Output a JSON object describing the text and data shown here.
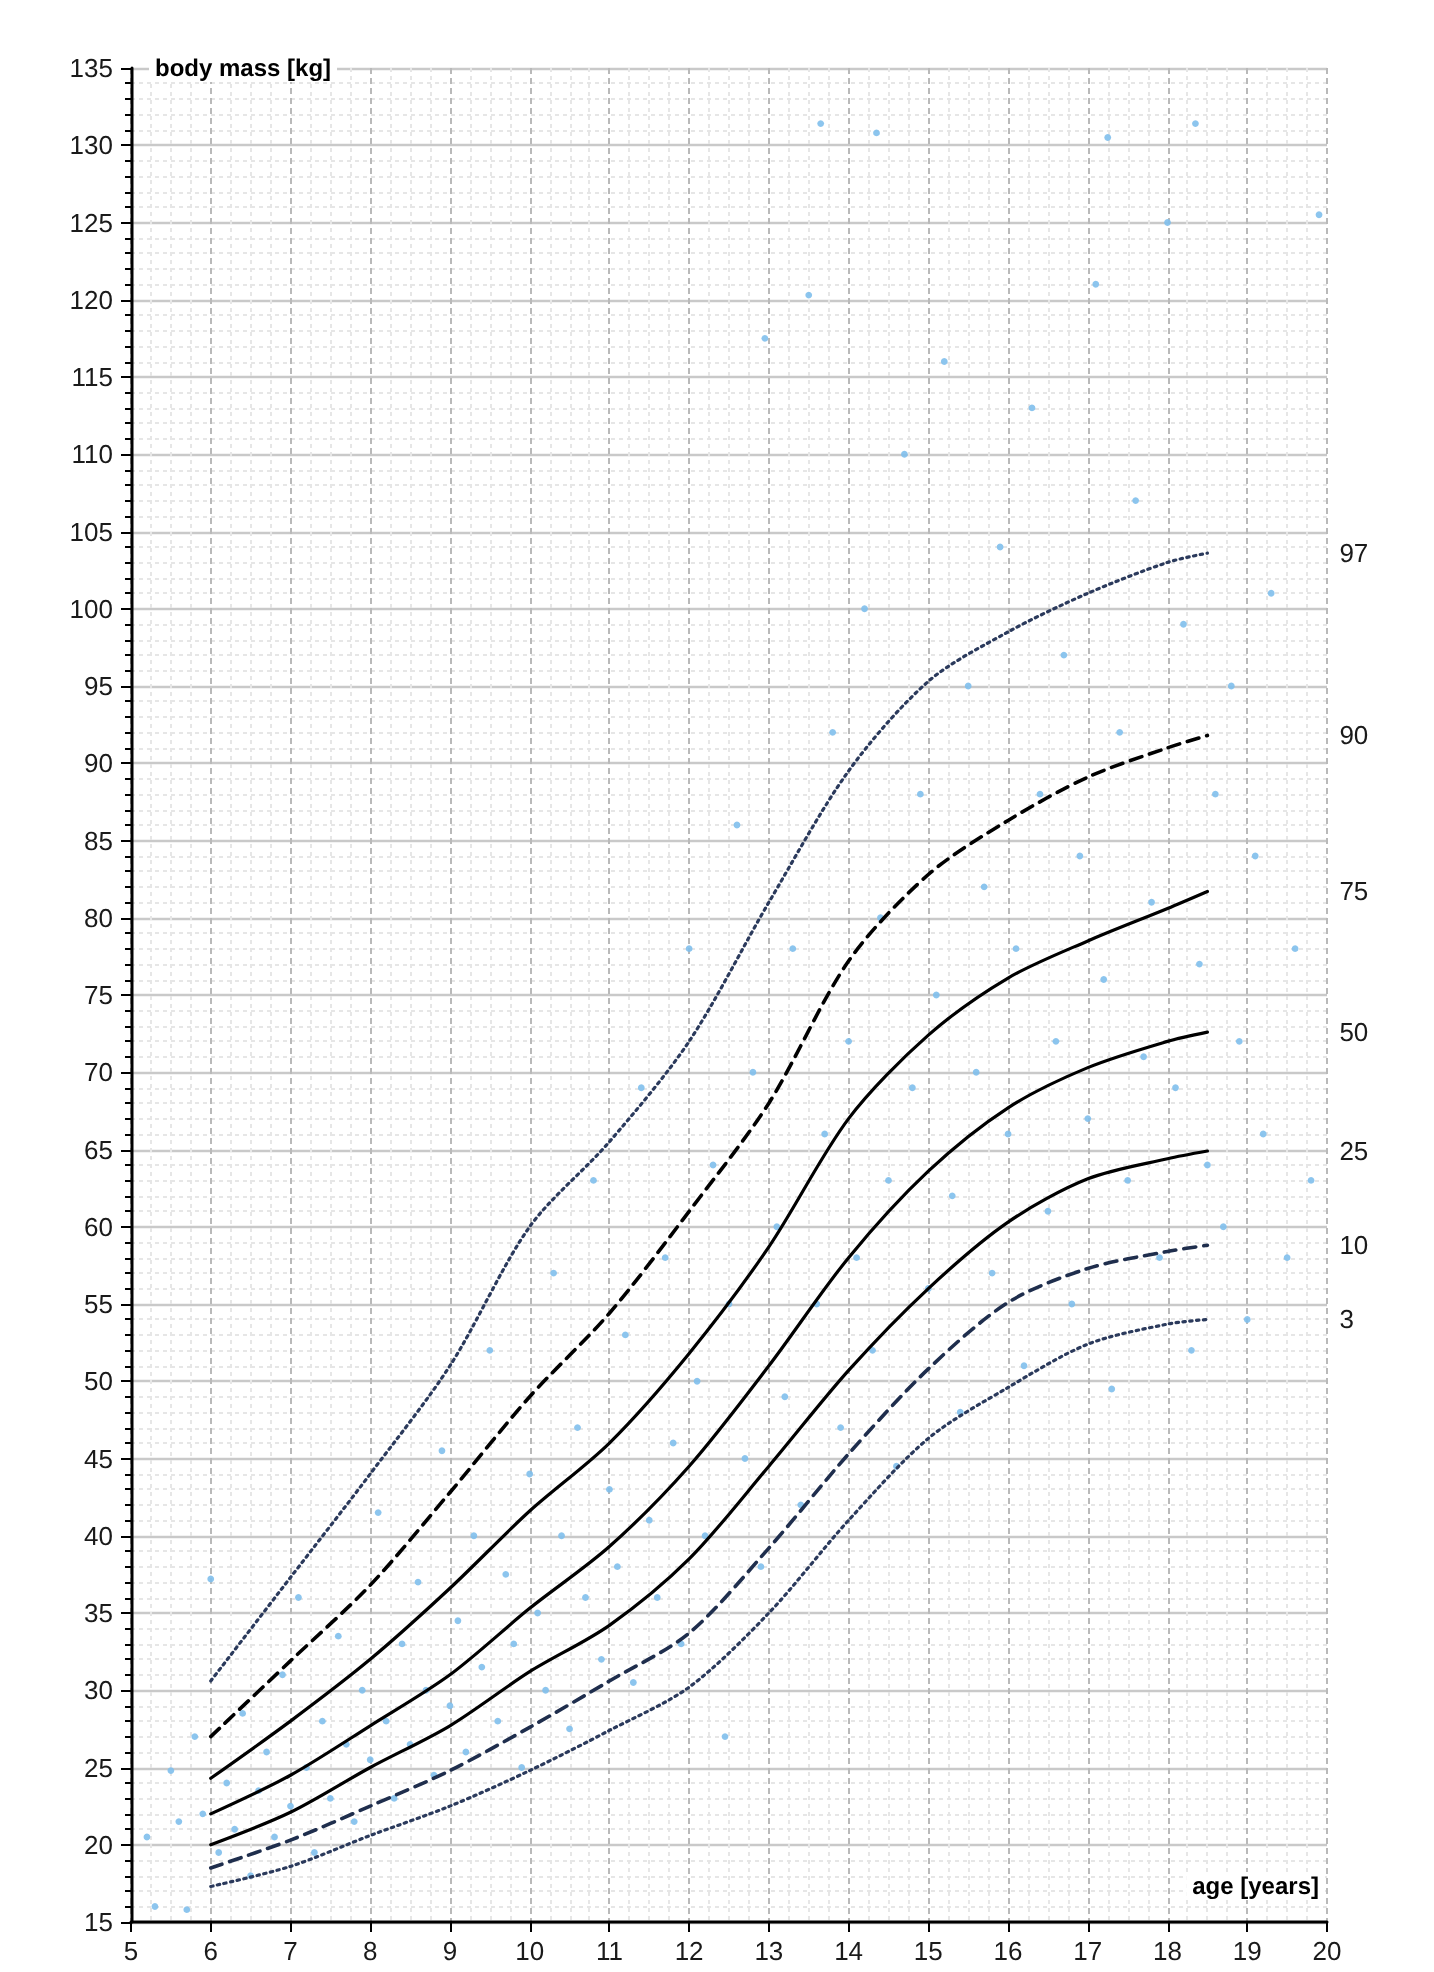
{
  "chart_data": {
    "type": "line",
    "xlabel": "age [years]",
    "ylabel": "body mass [kg]",
    "x": [
      6,
      7,
      8,
      9,
      10,
      11,
      12,
      13,
      14,
      15,
      16,
      17,
      18,
      18.5
    ],
    "series": [
      {
        "type": "scatter",
        "marker": "circle",
        "color": "#7fbfec",
        "x": [
          5.3,
          5.2,
          5.5,
          5.6,
          5.7,
          5.8,
          5.9,
          6.0,
          6.1,
          6.2,
          6.3,
          6.4,
          6.5,
          6.6,
          6.7,
          6.8,
          6.9,
          7.0,
          7.1,
          7.2,
          7.3,
          7.4,
          7.5,
          7.6,
          7.7,
          7.8,
          7.9,
          8.0,
          8.1,
          8.2,
          8.3,
          8.4,
          8.5,
          8.6,
          8.7,
          8.8,
          8.9,
          9.0,
          9.1,
          9.2,
          9.3,
          9.4,
          9.5,
          9.6,
          9.7,
          9.8,
          9.9,
          10.0,
          10.1,
          10.2,
          10.3,
          10.4,
          10.5,
          10.6,
          10.7,
          10.8,
          10.9,
          11.0,
          11.1,
          11.2,
          11.3,
          11.4,
          11.5,
          11.6,
          11.7,
          11.8,
          11.9,
          12.0,
          12.1,
          12.2,
          12.3,
          12.45,
          12.5,
          12.6,
          12.7,
          12.8,
          12.9,
          12.95,
          13.1,
          13.2,
          13.3,
          13.4,
          13.5,
          13.6,
          13.65,
          13.7,
          13.8,
          13.9,
          14.0,
          14.1,
          14.2,
          14.3,
          14.35,
          14.4,
          14.5,
          14.6,
          14.7,
          14.8,
          14.9,
          15.0,
          15.1,
          15.2,
          15.3,
          15.4,
          15.5,
          15.6,
          15.7,
          15.8,
          15.9,
          16.0,
          16.1,
          16.2,
          16.3,
          16.4,
          16.5,
          16.6,
          16.7,
          16.8,
          16.9,
          17.0,
          17.1,
          17.2,
          17.25,
          17.3,
          17.4,
          17.5,
          17.6,
          17.7,
          17.8,
          17.9,
          18.0,
          18.1,
          18.2,
          18.3,
          18.35,
          18.4,
          18.5,
          18.6,
          18.7,
          18.8,
          18.9,
          19.0,
          19.1,
          19.2,
          19.3,
          19.5,
          19.6,
          19.8,
          19.9
        ],
        "values": [
          16.0,
          20.5,
          24.8,
          21.5,
          15.8,
          27.0,
          22.0,
          37.2,
          19.5,
          24.0,
          21.0,
          28.5,
          18.0,
          23.5,
          26.0,
          20.5,
          31.0,
          22.5,
          36.0,
          25.0,
          19.5,
          28.0,
          23.0,
          33.5,
          26.5,
          21.5,
          30.0,
          25.5,
          41.5,
          28.0,
          23.0,
          33.0,
          26.5,
          37.0,
          30.0,
          24.5,
          45.5,
          29.0,
          34.5,
          26.0,
          40.0,
          31.5,
          52.0,
          28.0,
          37.5,
          33.0,
          25.0,
          44.0,
          35.0,
          30.0,
          57.0,
          40.0,
          27.5,
          47.0,
          36.0,
          63.0,
          32.0,
          43.0,
          38.0,
          53.0,
          30.5,
          69.0,
          41.0,
          36.0,
          58.0,
          46.0,
          33.0,
          78.0,
          50.0,
          40.0,
          64.0,
          27.0,
          55.0,
          86.0,
          45.0,
          70.0,
          38.0,
          117.5,
          60.0,
          49.0,
          78.0,
          42.0,
          120.3,
          55.0,
          131.4,
          66.0,
          92.0,
          47.0,
          72.0,
          58.0,
          100.0,
          52.0,
          130.8,
          80.0,
          63.0,
          44.5,
          110.0,
          69.0,
          88.0,
          56.0,
          75.0,
          116.0,
          62.0,
          48.0,
          95.0,
          70.0,
          82.0,
          57.0,
          104.0,
          66.0,
          78.0,
          51.0,
          113.0,
          88.0,
          61.0,
          72.0,
          97.0,
          55.0,
          84.0,
          67.0,
          121.0,
          76.0,
          130.5,
          49.5,
          92.0,
          63.0,
          107.0,
          71.0,
          81.0,
          58.0,
          125.0,
          69.0,
          99.0,
          52.0,
          131.4,
          77.0,
          64.0,
          88.0,
          60.0,
          95.0,
          72.0,
          54.0,
          84.0,
          66.0,
          101.0,
          58.0,
          78.0,
          63.0,
          125.5
        ]
      },
      {
        "name": "97",
        "marker": "none",
        "line_style": "dotted",
        "color": "#2b3a5c",
        "values": [
          30.6,
          37.3,
          44,
          51,
          60,
          65.5,
          72,
          81,
          89.5,
          95.3,
          98.5,
          101,
          103,
          103.6
        ]
      },
      {
        "name": "90",
        "marker": "none",
        "line_style": "dashed",
        "color": "#000000",
        "values": [
          27.0,
          31.9,
          36.8,
          42.8,
          49.0,
          54.4,
          61,
          68,
          77.2,
          82.8,
          86.3,
          89.1,
          91.0,
          91.8
        ]
      },
      {
        "name": "75",
        "marker": "none",
        "line_style": "solid",
        "color": "#000000",
        "values": [
          24.3,
          28.0,
          32.0,
          36.6,
          41.6,
          46.0,
          51.8,
          58.7,
          67.0,
          72.4,
          76.1,
          78.5,
          80.6,
          81.7
        ]
      },
      {
        "name": "50",
        "marker": "none",
        "line_style": "solid",
        "color": "#000000",
        "values": [
          22.0,
          24.5,
          27.7,
          31.0,
          35.3,
          39.3,
          44.5,
          51,
          58,
          63.6,
          67.7,
          70.3,
          72.0,
          72.6
        ]
      },
      {
        "name": "25",
        "marker": "none",
        "line_style": "solid",
        "color": "#000000",
        "values": [
          20.0,
          22.1,
          25.0,
          27.7,
          31.2,
          34.2,
          38.5,
          44.5,
          50.7,
          56.0,
          60.3,
          63.1,
          64.4,
          64.9
        ]
      },
      {
        "name": "10",
        "marker": "none",
        "line_style": "dashed",
        "color": "#1f2e4d",
        "values": [
          18.5,
          20.3,
          22.5,
          24.8,
          27.6,
          30.6,
          33.7,
          39.2,
          45.3,
          50.8,
          55.1,
          57.3,
          58.4,
          58.8
        ]
      },
      {
        "name": "3",
        "marker": "none",
        "line_style": "dotted",
        "color": "#2b3a5c",
        "values": [
          17.3,
          18.6,
          20.6,
          22.5,
          24.8,
          27.4,
          30.2,
          35.0,
          41.0,
          46.3,
          49.6,
          52.4,
          53.7,
          54.0
        ]
      }
    ],
    "xlim": [
      5,
      20
    ],
    "xticks": [
      5,
      6,
      7,
      8,
      9,
      10,
      11,
      12,
      13,
      14,
      15,
      16,
      17,
      18,
      19,
      20
    ],
    "ylim": [
      15,
      135
    ],
    "yticks": [
      15,
      20,
      25,
      30,
      35,
      40,
      45,
      50,
      55,
      60,
      65,
      70,
      75,
      80,
      85,
      90,
      95,
      100,
      105,
      110,
      115,
      120,
      125,
      130,
      135
    ],
    "grid": true
  }
}
